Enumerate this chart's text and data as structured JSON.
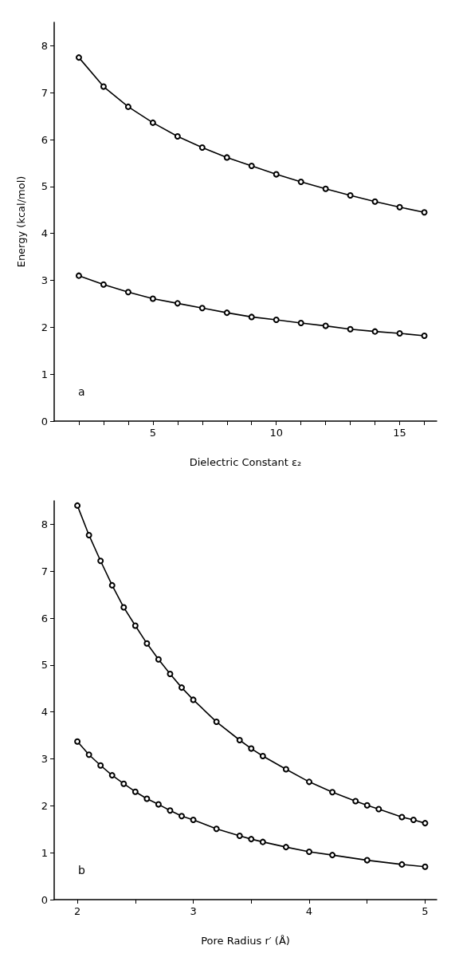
{
  "chart_data": [
    {
      "type": "line",
      "xlabel": "Dielectric Constant ε₂",
      "ylabel": "Energy (kcal/mol)",
      "annotations": [
        "a"
      ],
      "marker": "circle",
      "grid": false,
      "xlim": [
        1,
        16.5
      ],
      "xticks": [
        {
          "value": 2,
          "label": null
        },
        {
          "value": 3,
          "label": null
        },
        {
          "value": 4,
          "label": null
        },
        5,
        {
          "value": 6,
          "label": null
        },
        {
          "value": 7,
          "label": null
        },
        {
          "value": 8,
          "label": null
        },
        {
          "value": 9,
          "label": null
        },
        10,
        {
          "value": 11,
          "label": null
        },
        {
          "value": 12,
          "label": null
        },
        {
          "value": 13,
          "label": null
        },
        {
          "value": 14,
          "label": null
        },
        15,
        {
          "value": 16,
          "label": null
        }
      ],
      "ylim": [
        0,
        8.5
      ],
      "yticks": [
        0,
        1,
        2,
        3,
        4,
        5,
        6,
        7,
        8
      ],
      "x": [
        2,
        3,
        4,
        5,
        6,
        7,
        8,
        9,
        10,
        11,
        12,
        13,
        14,
        15,
        16
      ],
      "series": [
        {
          "color": "#000000",
          "values": [
            7.75,
            7.13,
            6.7,
            6.36,
            6.07,
            5.83,
            5.62,
            5.44,
            5.26,
            5.1,
            4.95,
            4.81,
            4.68,
            4.56,
            4.45
          ]
        },
        {
          "color": "#000000",
          "values": [
            3.1,
            2.91,
            2.75,
            2.61,
            2.51,
            2.41,
            2.31,
            2.22,
            2.16,
            2.09,
            2.03,
            1.96,
            1.91,
            1.87,
            1.82
          ]
        }
      ]
    },
    {
      "type": "line",
      "xlabel": "Pore Radius r′ (Å)",
      "annotations": [
        "b"
      ],
      "marker": "circle",
      "grid": false,
      "xlim": [
        1.8,
        5.1
      ],
      "xticks": [
        2,
        {
          "value": 2.5,
          "label": null
        },
        3,
        {
          "value": 3.5,
          "label": null
        },
        4,
        {
          "value": 4.5,
          "label": null
        },
        5
      ],
      "ylim": [
        0,
        8.5
      ],
      "yticks": [
        0,
        1,
        2,
        3,
        4,
        5,
        6,
        7,
        8
      ],
      "series": [
        {
          "color": "#000000",
          "x": [
            2,
            2.1,
            2.2,
            2.3,
            2.4,
            2.5,
            2.6,
            2.7,
            2.8,
            2.9,
            3,
            3.2,
            3.4,
            3.5,
            3.6,
            3.8,
            4,
            4.2,
            4.4,
            4.5,
            4.6,
            4.8,
            4.9,
            5
          ],
          "values": [
            8.4,
            7.77,
            7.22,
            6.7,
            6.23,
            5.84,
            5.46,
            5.12,
            4.81,
            4.52,
            4.26,
            3.79,
            3.4,
            3.22,
            3.06,
            2.78,
            2.51,
            2.29,
            2.1,
            2.01,
            1.93,
            1.76,
            1.7,
            1.63
          ]
        },
        {
          "color": "#000000",
          "x": [
            2,
            2.1,
            2.2,
            2.3,
            2.4,
            2.5,
            2.6,
            2.7,
            2.8,
            2.9,
            3,
            3.2,
            3.4,
            3.5,
            3.6,
            3.8,
            4,
            4.2,
            4.5,
            4.8,
            5
          ],
          "values": [
            3.37,
            3.09,
            2.86,
            2.65,
            2.47,
            2.3,
            2.15,
            2.03,
            1.9,
            1.78,
            1.7,
            1.51,
            1.36,
            1.29,
            1.23,
            1.12,
            1.02,
            0.95,
            0.84,
            0.75,
            0.7
          ]
        }
      ]
    }
  ]
}
